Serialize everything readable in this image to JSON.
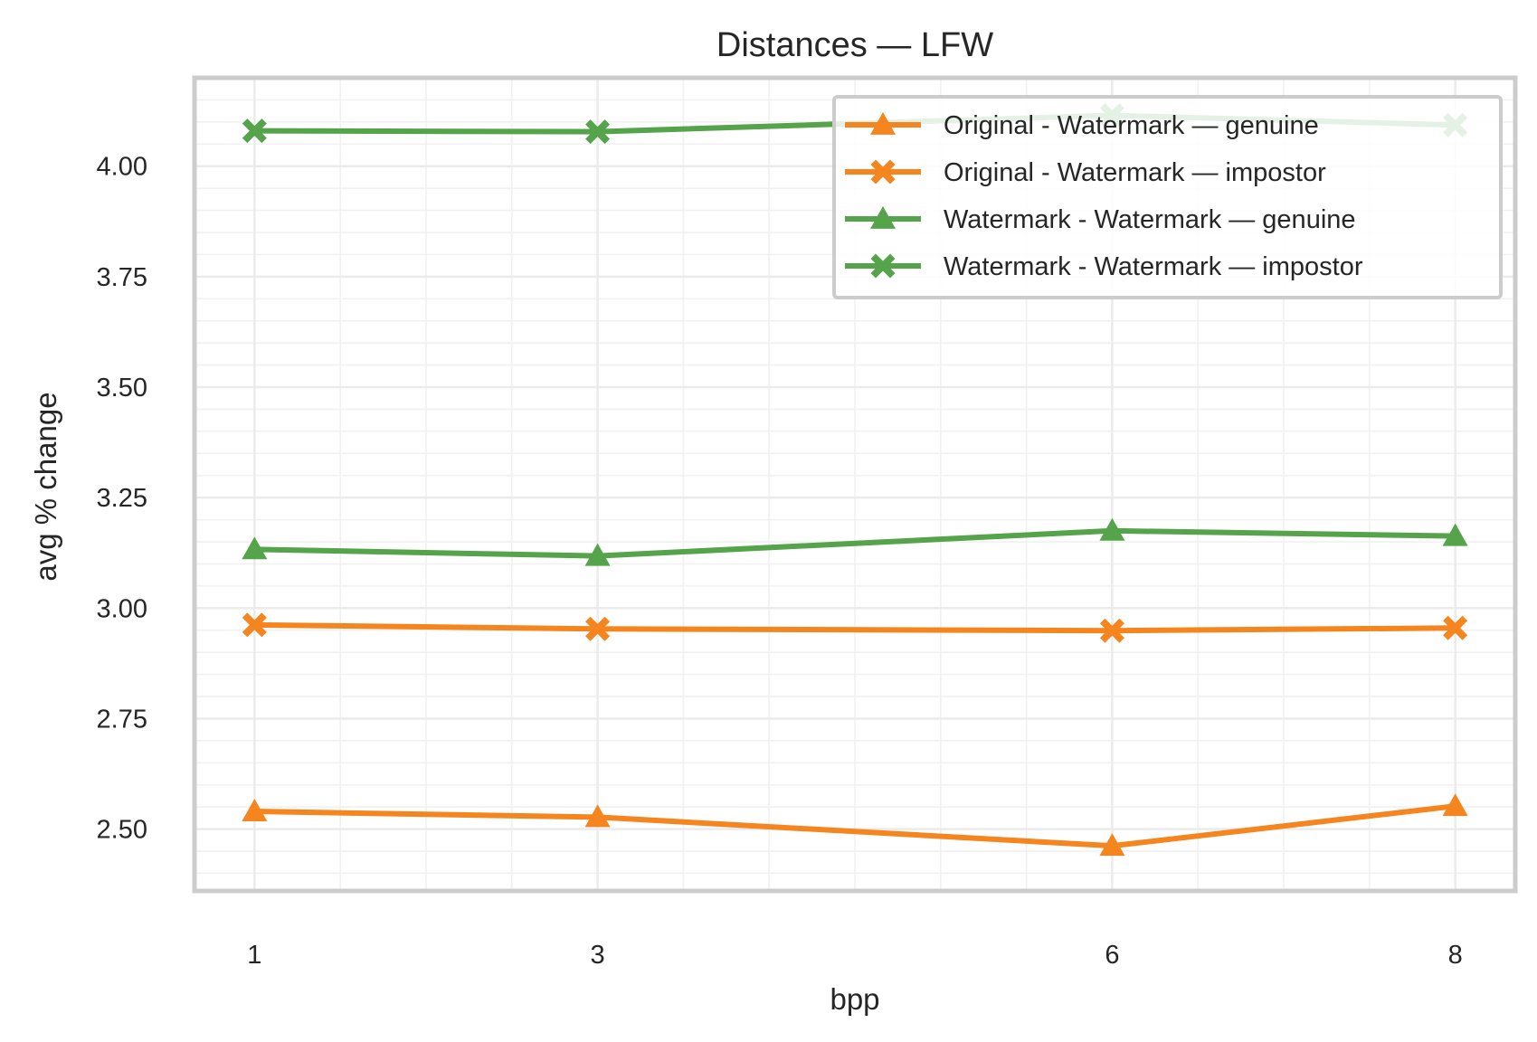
{
  "chart_data": {
    "type": "line",
    "title": "Distances — LFW",
    "xlabel": "bpp",
    "ylabel": "avg % change",
    "x": [
      1,
      3,
      6,
      8
    ],
    "x_tick_labels": [
      "1",
      "3",
      "6",
      "8"
    ],
    "xlim": [
      0.65,
      8.35
    ],
    "ylim": [
      2.36,
      4.2
    ],
    "y_ticks": [
      2.5,
      2.75,
      3.0,
      3.25,
      3.5,
      3.75,
      4.0
    ],
    "y_tick_labels": [
      "2.50",
      "2.75",
      "3.00",
      "3.25",
      "3.50",
      "3.75",
      "4.00"
    ],
    "grid": true,
    "minor_grid": true,
    "legend_position": "upper-right",
    "series": [
      {
        "name": "Original - Watermark — genuine",
        "values": [
          2.54,
          2.527,
          2.462,
          2.552
        ],
        "color": "#f5851f",
        "marker": "triangle"
      },
      {
        "name": "Original - Watermark — impostor",
        "values": [
          2.962,
          2.953,
          2.949,
          2.955
        ],
        "color": "#f5851f",
        "marker": "x-filled"
      },
      {
        "name": "Watermark - Watermark — genuine",
        "values": [
          3.133,
          3.118,
          3.175,
          3.163
        ],
        "color": "#55a34a",
        "marker": "triangle"
      },
      {
        "name": "Watermark - Watermark — impostor",
        "values": [
          4.08,
          4.078,
          4.115,
          4.093
        ],
        "color": "#55a34a",
        "marker": "x-filled"
      }
    ]
  }
}
